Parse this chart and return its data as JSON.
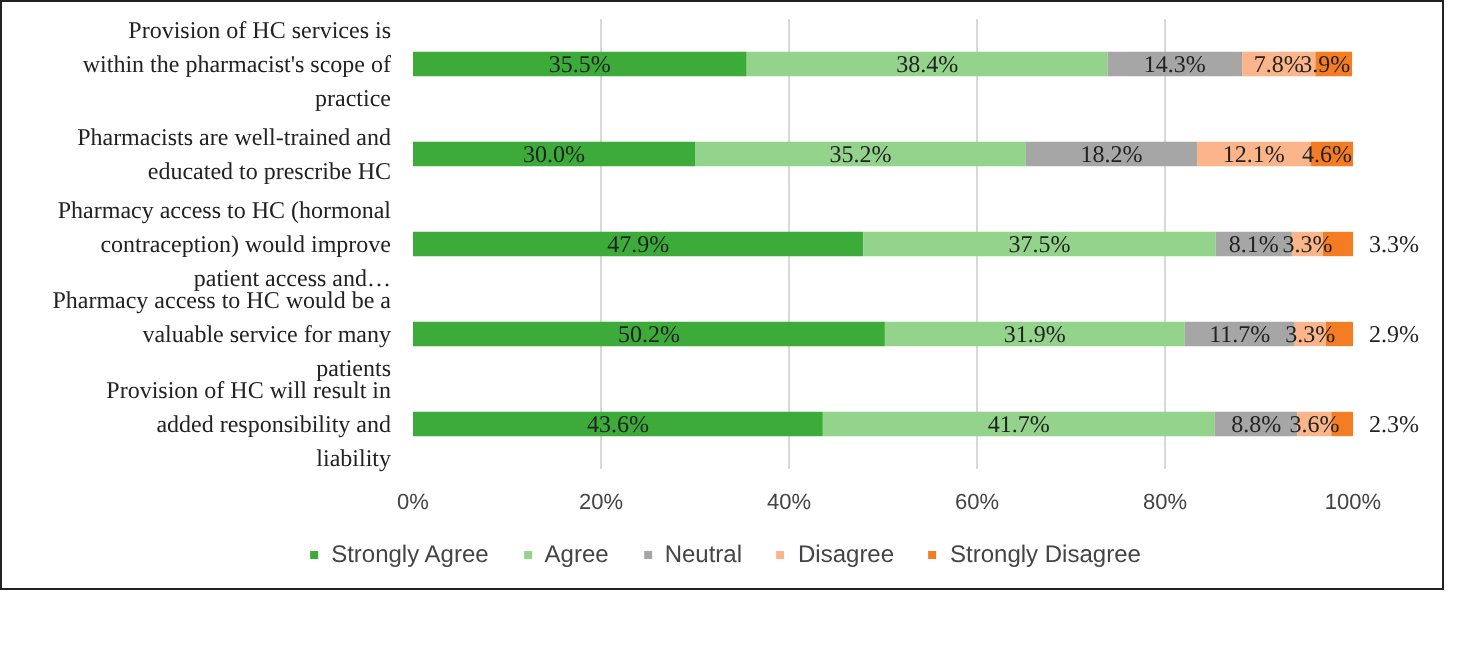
{
  "chart_data": {
    "type": "bar",
    "orientation": "horizontal",
    "stacked": true,
    "categories": [
      "Provision of HC services is within the pharmacist's scope of practice",
      "Pharmacists are well-trained and educated to prescribe HC",
      "Pharmacy access to HC (hormonal contraception) would improve patient access and…",
      "Pharmacy access to HC would be a valuable service for many patients",
      "Provision of HC will result in added responsibility and liability"
    ],
    "series": [
      {
        "name": "Strongly Agree",
        "color": "#3dab3a",
        "values": [
          35.5,
          30.0,
          47.9,
          50.2,
          43.6
        ],
        "value_labels": [
          "35.5%",
          "30.0%",
          "47.9%",
          "50.2%",
          "43.6%"
        ]
      },
      {
        "name": "Agree",
        "color": "#93d38b",
        "values": [
          38.4,
          35.2,
          37.5,
          31.9,
          41.7
        ],
        "value_labels": [
          "38.4%",
          "35.2%",
          "37.5%",
          "31.9%",
          "41.7%"
        ]
      },
      {
        "name": "Neutral",
        "color": "#a6a6a6",
        "values": [
          14.3,
          18.2,
          8.1,
          11.7,
          8.8
        ],
        "value_labels": [
          "14.3%",
          "18.2%",
          "8.1%",
          "11.7%",
          "8.8%"
        ]
      },
      {
        "name": "Disagree",
        "color": "#fbb58a",
        "values": [
          7.8,
          12.1,
          3.3,
          3.3,
          3.6
        ],
        "value_labels": [
          "7.8%",
          "12.1%",
          "3.3%",
          "3.3%",
          "3.6%"
        ]
      },
      {
        "name": "Strongly Disagree",
        "color": "#f47c22",
        "values": [
          3.9,
          4.6,
          3.3,
          2.9,
          2.3
        ],
        "value_labels": [
          "3.9%",
          "4.6%",
          "3.3%",
          "2.9%",
          "2.3%"
        ]
      }
    ],
    "xlim": [
      0,
      100
    ],
    "xticks": [
      {
        "value": 0,
        "label": "0%"
      },
      {
        "value": 20,
        "label": "20%"
      },
      {
        "value": 40,
        "label": "40%"
      },
      {
        "value": 60,
        "label": "60%"
      },
      {
        "value": 80,
        "label": "80%"
      },
      {
        "value": 100,
        "label": "100%"
      }
    ],
    "grid": "x",
    "legend": "bottom"
  }
}
